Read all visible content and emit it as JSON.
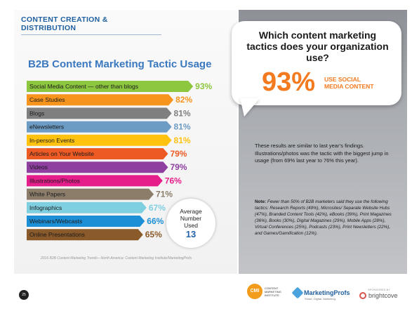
{
  "header": {
    "section_title": "CONTENT CREATION & DISTRIBUTION"
  },
  "chart_data": {
    "type": "bar",
    "orientation": "horizontal",
    "title": "B2B Content Marketing Tactic Usage",
    "categories": [
      "Social Media Content — other than blogs",
      "Case Studies",
      "Blogs",
      "eNewsletters",
      "In-person Events",
      "Articles on Your Website",
      "Videos",
      "Illustrations/Photos",
      "White Papers",
      "Infographics",
      "Webinars/Webcasts",
      "Online Presentations"
    ],
    "values": [
      93,
      82,
      81,
      81,
      81,
      79,
      79,
      76,
      71,
      67,
      66,
      65
    ],
    "value_labels": [
      "93%",
      "82%",
      "81%",
      "81%",
      "81%",
      "79%",
      "79%",
      "76%",
      "71%",
      "67%",
      "66%",
      "65%"
    ],
    "colors": [
      "#8dc63f",
      "#f7941d",
      "#7f7f7f",
      "#6c9bc4",
      "#ffc20e",
      "#ee5a24",
      "#8e3fa0",
      "#e61e8c",
      "#8c7d6b",
      "#7ecfe0",
      "#1d8fd6",
      "#8b5a2b"
    ],
    "xlim": [
      0,
      100
    ],
    "grid": false,
    "legend": "none"
  },
  "average": {
    "label": "Average Number Used",
    "value": "13"
  },
  "source_note": "2016 B2B Content Marketing Trends—North America: Content Marketing Institute/MarketingProfs",
  "callout": {
    "question": "Which content marketing tactics does your organization use?",
    "percent": "93%",
    "percent_caption": "USE SOCIAL MEDIA CONTENT"
  },
  "findings": "These results are similar to last year’s findings. Illustrations/photos was the tactic with the biggest jump in usage (from 69% last year to 76% this year).",
  "note": {
    "label": "Note:",
    "text": "Fewer than 50% of B2B marketers said they use the following tactics: Research Reports (49%), Microsites/ Separate Website Hubs (47%), Branded Content Tools (42%), eBooks (39%), Print Magazines (36%), Books (30%), Digital Magazines (29%), Mobile Apps (28%), Virtual Conferences (25%), Podcasts (23%), Print Newsletters (22%), and Games/Gamification (12%)."
  },
  "footer": {
    "page_number": "25",
    "cmi_badge": "CMI",
    "cmi_text": "CONTENT MARKETING INSTITUTE",
    "mp_name": "MarketingProfs",
    "mp_tagline": "Smart. Digital. Marketing.",
    "bc_sponsor": "SPONSORED BY",
    "bc_name": "brightcove"
  }
}
